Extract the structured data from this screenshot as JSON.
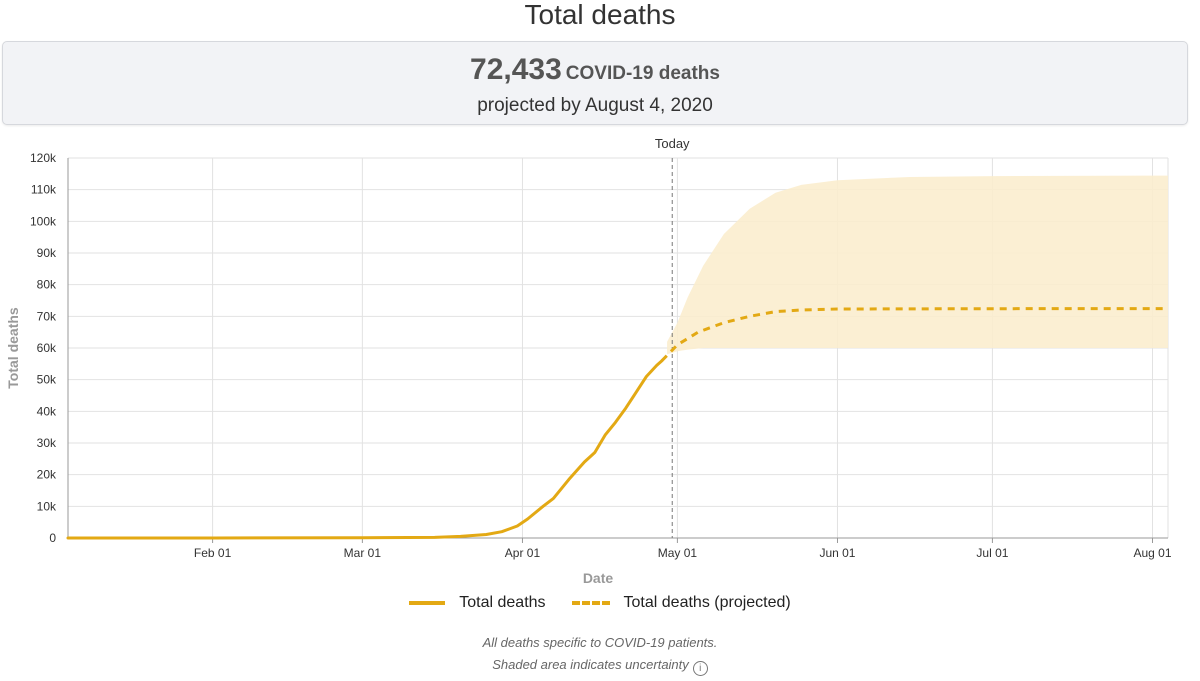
{
  "page": {
    "title": "Total deaths",
    "summary_value": "72,433",
    "summary_unit": "COVID-19 deaths",
    "summary_sub": "projected by August 4, 2020"
  },
  "notes": {
    "line1": "All deaths specific to COVID-19 patients.",
    "line2": "Shaded area indicates uncertainty",
    "info_icon": "ⓘ"
  },
  "colors": {
    "line": "#e3a914",
    "band": "#fbedce",
    "grid": "#e2e2e2",
    "axis": "#999999"
  },
  "chart_data": {
    "type": "line",
    "title": "",
    "xlabel": "Date",
    "ylabel": "Total deaths",
    "ylim": [
      0,
      120000
    ],
    "xlim": [
      "2020-01-04",
      "2020-08-04"
    ],
    "x_ticks": [
      {
        "date": "2020-02-01",
        "label": "Feb 01"
      },
      {
        "date": "2020-03-01",
        "label": "Mar 01"
      },
      {
        "date": "2020-04-01",
        "label": "Apr 01"
      },
      {
        "date": "2020-05-01",
        "label": "May 01"
      },
      {
        "date": "2020-06-01",
        "label": "Jun 01"
      },
      {
        "date": "2020-07-01",
        "label": "Jul 01"
      },
      {
        "date": "2020-08-01",
        "label": "Aug 01"
      }
    ],
    "y_ticks": [
      {
        "value": 0,
        "label": "0"
      },
      {
        "value": 10000,
        "label": "10k"
      },
      {
        "value": 20000,
        "label": "20k"
      },
      {
        "value": 30000,
        "label": "30k"
      },
      {
        "value": 40000,
        "label": "40k"
      },
      {
        "value": 50000,
        "label": "50k"
      },
      {
        "value": 60000,
        "label": "60k"
      },
      {
        "value": 70000,
        "label": "70k"
      },
      {
        "value": 80000,
        "label": "80k"
      },
      {
        "value": 90000,
        "label": "90k"
      },
      {
        "value": 100000,
        "label": "100k"
      },
      {
        "value": 110000,
        "label": "110k"
      },
      {
        "value": 120000,
        "label": "120k"
      }
    ],
    "grid": true,
    "legend_position": "bottom",
    "today": {
      "date": "2020-04-30",
      "label": "Today"
    },
    "series": [
      {
        "name": "Total deaths",
        "style": "solid",
        "points": [
          [
            "2020-01-04",
            0
          ],
          [
            "2020-02-01",
            0
          ],
          [
            "2020-03-01",
            100
          ],
          [
            "2020-03-15",
            200
          ],
          [
            "2020-03-20",
            500
          ],
          [
            "2020-03-25",
            1100
          ],
          [
            "2020-03-28",
            2000
          ],
          [
            "2020-03-31",
            3800
          ],
          [
            "2020-04-02",
            6000
          ],
          [
            "2020-04-05",
            10000
          ],
          [
            "2020-04-07",
            12500
          ],
          [
            "2020-04-10",
            18500
          ],
          [
            "2020-04-13",
            24000
          ],
          [
            "2020-04-15",
            27000
          ],
          [
            "2020-04-17",
            32500
          ],
          [
            "2020-04-19",
            36500
          ],
          [
            "2020-04-21",
            41000
          ],
          [
            "2020-04-23",
            46000
          ],
          [
            "2020-04-25",
            51000
          ],
          [
            "2020-04-27",
            54500
          ],
          [
            "2020-04-28",
            56000
          ]
        ]
      },
      {
        "name": "Total deaths (projected)",
        "style": "dashed",
        "points": [
          [
            "2020-04-28",
            56000
          ],
          [
            "2020-05-01",
            61000
          ],
          [
            "2020-05-05",
            65000
          ],
          [
            "2020-05-10",
            68000
          ],
          [
            "2020-05-15",
            70000
          ],
          [
            "2020-05-20",
            71500
          ],
          [
            "2020-05-25",
            72000
          ],
          [
            "2020-06-01",
            72300
          ],
          [
            "2020-07-01",
            72400
          ],
          [
            "2020-08-04",
            72433
          ]
        ]
      }
    ],
    "uncertainty_band": [
      {
        "date": "2020-04-29",
        "lower": 58000,
        "upper": 62000
      },
      {
        "date": "2020-05-01",
        "lower": 59000,
        "upper": 68000
      },
      {
        "date": "2020-05-03",
        "lower": 59500,
        "upper": 76000
      },
      {
        "date": "2020-05-06",
        "lower": 60000,
        "upper": 86000
      },
      {
        "date": "2020-05-10",
        "lower": 60000,
        "upper": 96000
      },
      {
        "date": "2020-05-15",
        "lower": 60000,
        "upper": 104000
      },
      {
        "date": "2020-05-20",
        "lower": 60000,
        "upper": 109000
      },
      {
        "date": "2020-05-25",
        "lower": 60000,
        "upper": 111500
      },
      {
        "date": "2020-06-01",
        "lower": 60000,
        "upper": 113000
      },
      {
        "date": "2020-06-15",
        "lower": 60000,
        "upper": 114000
      },
      {
        "date": "2020-07-01",
        "lower": 60000,
        "upper": 114300
      },
      {
        "date": "2020-08-04",
        "lower": 60000,
        "upper": 114433
      }
    ]
  }
}
